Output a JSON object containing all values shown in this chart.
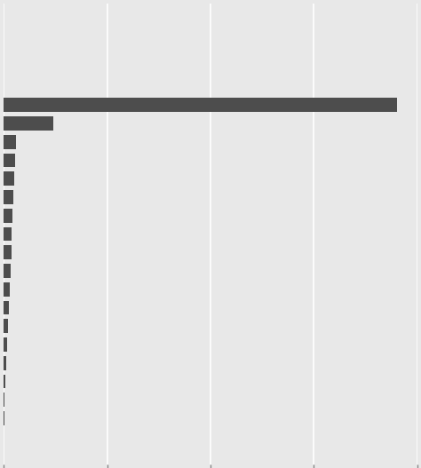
{
  "values": [
    0.95,
    0.12,
    0.03,
    0.028,
    0.026,
    0.024,
    0.022,
    0.02,
    0.018,
    0.016,
    0.014,
    0.012,
    0.01,
    0.008,
    0.006,
    0.004,
    0.002,
    0.001,
    0.0004,
    0.0002
  ],
  "bar_color": "#4d4d4d",
  "background_color": "#e8e8e8",
  "grid_color": "#ffffff",
  "xlim_max": 1.0,
  "n_gridlines": 5,
  "total_rows": 25
}
